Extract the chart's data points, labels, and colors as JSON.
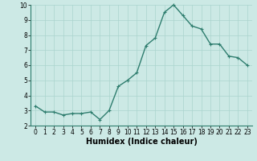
{
  "x": [
    0,
    1,
    2,
    3,
    4,
    5,
    6,
    7,
    8,
    9,
    10,
    11,
    12,
    13,
    14,
    15,
    16,
    17,
    18,
    19,
    20,
    21,
    22,
    23
  ],
  "y": [
    3.3,
    2.9,
    2.9,
    2.7,
    2.8,
    2.8,
    2.9,
    2.4,
    3.0,
    4.6,
    5.0,
    5.5,
    7.3,
    7.8,
    9.5,
    10.0,
    9.3,
    8.6,
    8.4,
    7.4,
    7.4,
    6.6,
    6.5,
    6.0
  ],
  "line_color": "#2e7d6e",
  "marker": "+",
  "marker_size": 3,
  "marker_lw": 0.8,
  "bg_color": "#cce9e5",
  "grid_color": "#aad4ce",
  "xlabel": "Humidex (Indice chaleur)",
  "ylim": [
    2,
    10
  ],
  "xlim": [
    -0.5,
    23.5
  ],
  "yticks": [
    2,
    3,
    4,
    5,
    6,
    7,
    8,
    9,
    10
  ],
  "xticks": [
    0,
    1,
    2,
    3,
    4,
    5,
    6,
    7,
    8,
    9,
    10,
    11,
    12,
    13,
    14,
    15,
    16,
    17,
    18,
    19,
    20,
    21,
    22,
    23
  ],
  "tick_fontsize": 5.5,
  "xlabel_fontsize": 7,
  "line_width": 1.0
}
